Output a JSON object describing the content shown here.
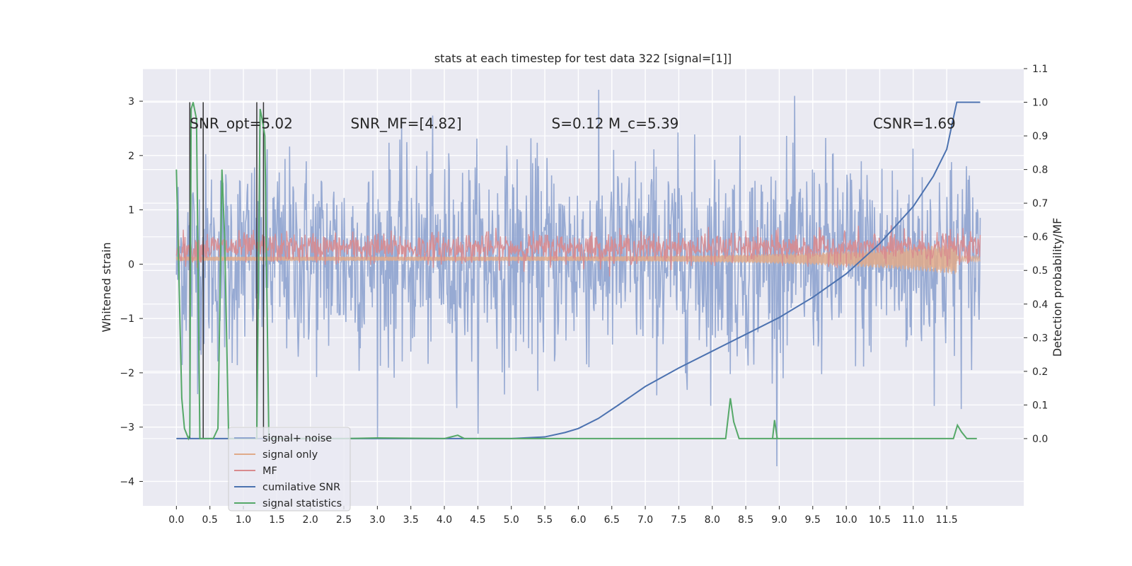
{
  "chart_data": {
    "type": "line",
    "title": "stats at each timestep for test data 322 [signal=[1]]",
    "xlabel": "",
    "ylabel": "Whitened strain",
    "y2label": "Detection probability/MF",
    "xlim": [
      -0.5,
      12.65
    ],
    "ylim": [
      -4.45,
      3.6
    ],
    "y2lim": [
      -0.2,
      1.1
    ],
    "x_ticks": [
      0.0,
      0.5,
      1.0,
      1.5,
      2.0,
      2.5,
      3.0,
      3.5,
      4.0,
      4.5,
      5.0,
      5.5,
      6.0,
      6.5,
      7.0,
      7.5,
      8.0,
      8.5,
      9.0,
      9.5,
      10.0,
      10.5,
      11.0,
      11.5
    ],
    "x_tick_labels": [
      "0.0",
      "0.5",
      "1.0",
      "1.5",
      "2.0",
      "2.5",
      "3.0",
      "3.5",
      "4.0",
      "4.5",
      "5.0",
      "5.5",
      "6.0",
      "6.5",
      "7.0",
      "7.5",
      "8.0",
      "8.5",
      "9.0",
      "9.5",
      "10.0",
      "10.5",
      "11.0",
      "11.5"
    ],
    "y_ticks": [
      -4,
      -3,
      -2,
      -1,
      0,
      1,
      2,
      3
    ],
    "y_tick_labels": [
      "−4",
      "−3",
      "−2",
      "−1",
      "0",
      "1",
      "2",
      "3"
    ],
    "y2_ticks": [
      0.0,
      0.1,
      0.2,
      0.3,
      0.4,
      0.5,
      0.6,
      0.7,
      0.8,
      0.9,
      1.0,
      1.1
    ],
    "y2_tick_labels": [
      "0.0",
      "0.1",
      "0.2",
      "0.3",
      "0.4",
      "0.5",
      "0.6",
      "0.7",
      "0.8",
      "0.9",
      "1.0",
      "1.1"
    ],
    "grid": true,
    "legend_position": "bottom-left",
    "annotations": [
      {
        "text": "SNR_opt=5.02",
        "x": 0.2,
        "y": 2.5
      },
      {
        "text": "SNR_MF=[4.82]",
        "x": 2.6,
        "y": 2.5
      },
      {
        "text": "S=0.12   M_c=5.39",
        "x": 5.6,
        "y": 2.5
      },
      {
        "text": "CSNR=1.69",
        "x": 10.4,
        "y": 2.5
      }
    ],
    "series": [
      {
        "name": "signal+ noise",
        "color": "#92a7d1",
        "axis": "left",
        "description_range": [
          -2.0,
          2.2
        ],
        "x_range": [
          0.0,
          12.0
        ]
      },
      {
        "name": "signal only",
        "color": "#e0aa8a",
        "axis": "left"
      },
      {
        "name": "MF",
        "color": "#d88a8e",
        "axis": "left"
      },
      {
        "name": "cumilative SNR",
        "color": "#4c72b0",
        "axis": "right",
        "x": [
          0.0,
          0.5,
          1.0,
          2.0,
          3.0,
          4.0,
          5.0,
          5.5,
          5.8,
          6.0,
          6.3,
          6.6,
          7.0,
          7.5,
          8.0,
          8.5,
          9.0,
          9.5,
          10.0,
          10.5,
          11.0,
          11.3,
          11.5,
          11.65,
          12.0
        ],
        "y": [
          0.0,
          0.0,
          0.0,
          0.0,
          0.0,
          0.0,
          0.0,
          0.005,
          0.018,
          0.03,
          0.06,
          0.1,
          0.155,
          0.21,
          0.26,
          0.31,
          0.36,
          0.42,
          0.49,
          0.58,
          0.69,
          0.78,
          0.86,
          1.0,
          1.0
        ]
      },
      {
        "name": "signal statistics",
        "color": "#55a868",
        "axis": "right",
        "x": [
          0.0,
          0.08,
          0.12,
          0.18,
          0.2,
          0.22,
          0.25,
          0.3,
          0.35,
          0.38,
          0.42,
          0.45,
          0.55,
          0.62,
          0.68,
          0.72,
          0.78,
          0.85,
          1.0,
          1.15,
          1.2,
          1.25,
          1.28,
          1.32,
          1.38,
          1.45,
          2.5,
          3.0,
          4.0,
          4.2,
          4.3,
          5.0,
          8.2,
          8.27,
          8.32,
          8.4,
          9.0,
          8.9,
          8.93,
          8.97,
          9.02,
          11.5,
          11.6,
          11.66,
          11.72,
          11.8,
          11.95
        ],
        "y": [
          0.8,
          0.12,
          0.03,
          0.0,
          0.01,
          0.98,
          1.0,
          0.95,
          0.0,
          0.0,
          0.0,
          0.0,
          0.0,
          0.03,
          0.8,
          0.6,
          0.0,
          0.0,
          0.0,
          0.0,
          0.0,
          0.98,
          0.95,
          0.9,
          0.0,
          0.0,
          0.0,
          0.002,
          0.0,
          0.01,
          0.0,
          0.0,
          0.0,
          0.12,
          0.05,
          0.0,
          0.0,
          0.0,
          0.055,
          0.0,
          0.0,
          0.0,
          0.0,
          0.04,
          0.02,
          0.0,
          0.0
        ]
      }
    ],
    "vertical_lines_black": [
      0.2,
      0.4,
      1.2,
      1.3
    ],
    "legend": [
      "signal+ noise",
      "signal only",
      "MF",
      "cumilative SNR",
      "signal statistics"
    ]
  }
}
